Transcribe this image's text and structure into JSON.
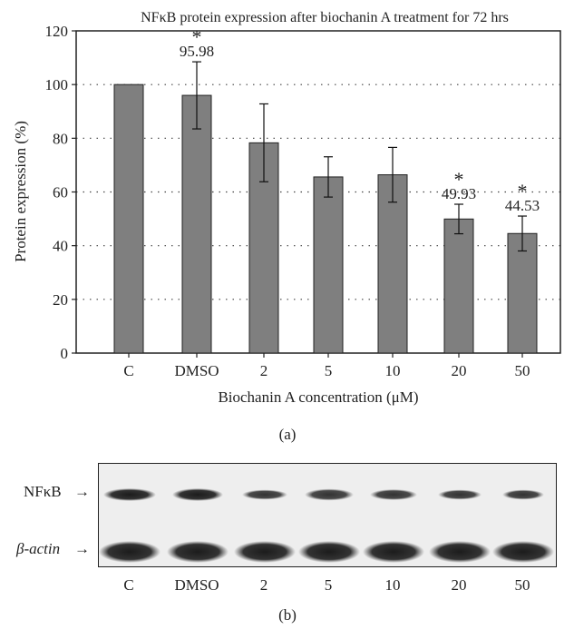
{
  "chart_data": {
    "type": "bar",
    "title": "NFκB protein expression after biochanin A treatment for 72 hrs",
    "xlabel": "Biochanin A concentration (μM)",
    "ylabel": "Protein expression (%)",
    "ylim": [
      0,
      120
    ],
    "yticks": [
      "0",
      "20",
      "40",
      "60",
      "80",
      "100",
      "120"
    ],
    "grid": "horizontal dotted",
    "categories": [
      "C",
      "DMSO",
      "2",
      "5",
      "10",
      "20",
      "50"
    ],
    "values": [
      100,
      95.98,
      78.3,
      65.6,
      66.4,
      49.93,
      44.53
    ],
    "error": [
      0,
      12.5,
      14.5,
      7.5,
      10.2,
      5.5,
      6.5
    ],
    "data_labels": [
      "",
      "95.98",
      "",
      "",
      "",
      "49.93",
      "44.53"
    ],
    "significance": [
      "",
      "*",
      "",
      "",
      "",
      "*",
      "*"
    ],
    "bar_color": "#7f7f7f",
    "panel_label": "(a)"
  },
  "blot": {
    "rows": [
      "NFκB",
      "β-actin"
    ],
    "arrow": "→",
    "lanes": [
      "C",
      "DMSO",
      "2",
      "5",
      "10",
      "20",
      "50"
    ],
    "panel_label": "(b)"
  }
}
